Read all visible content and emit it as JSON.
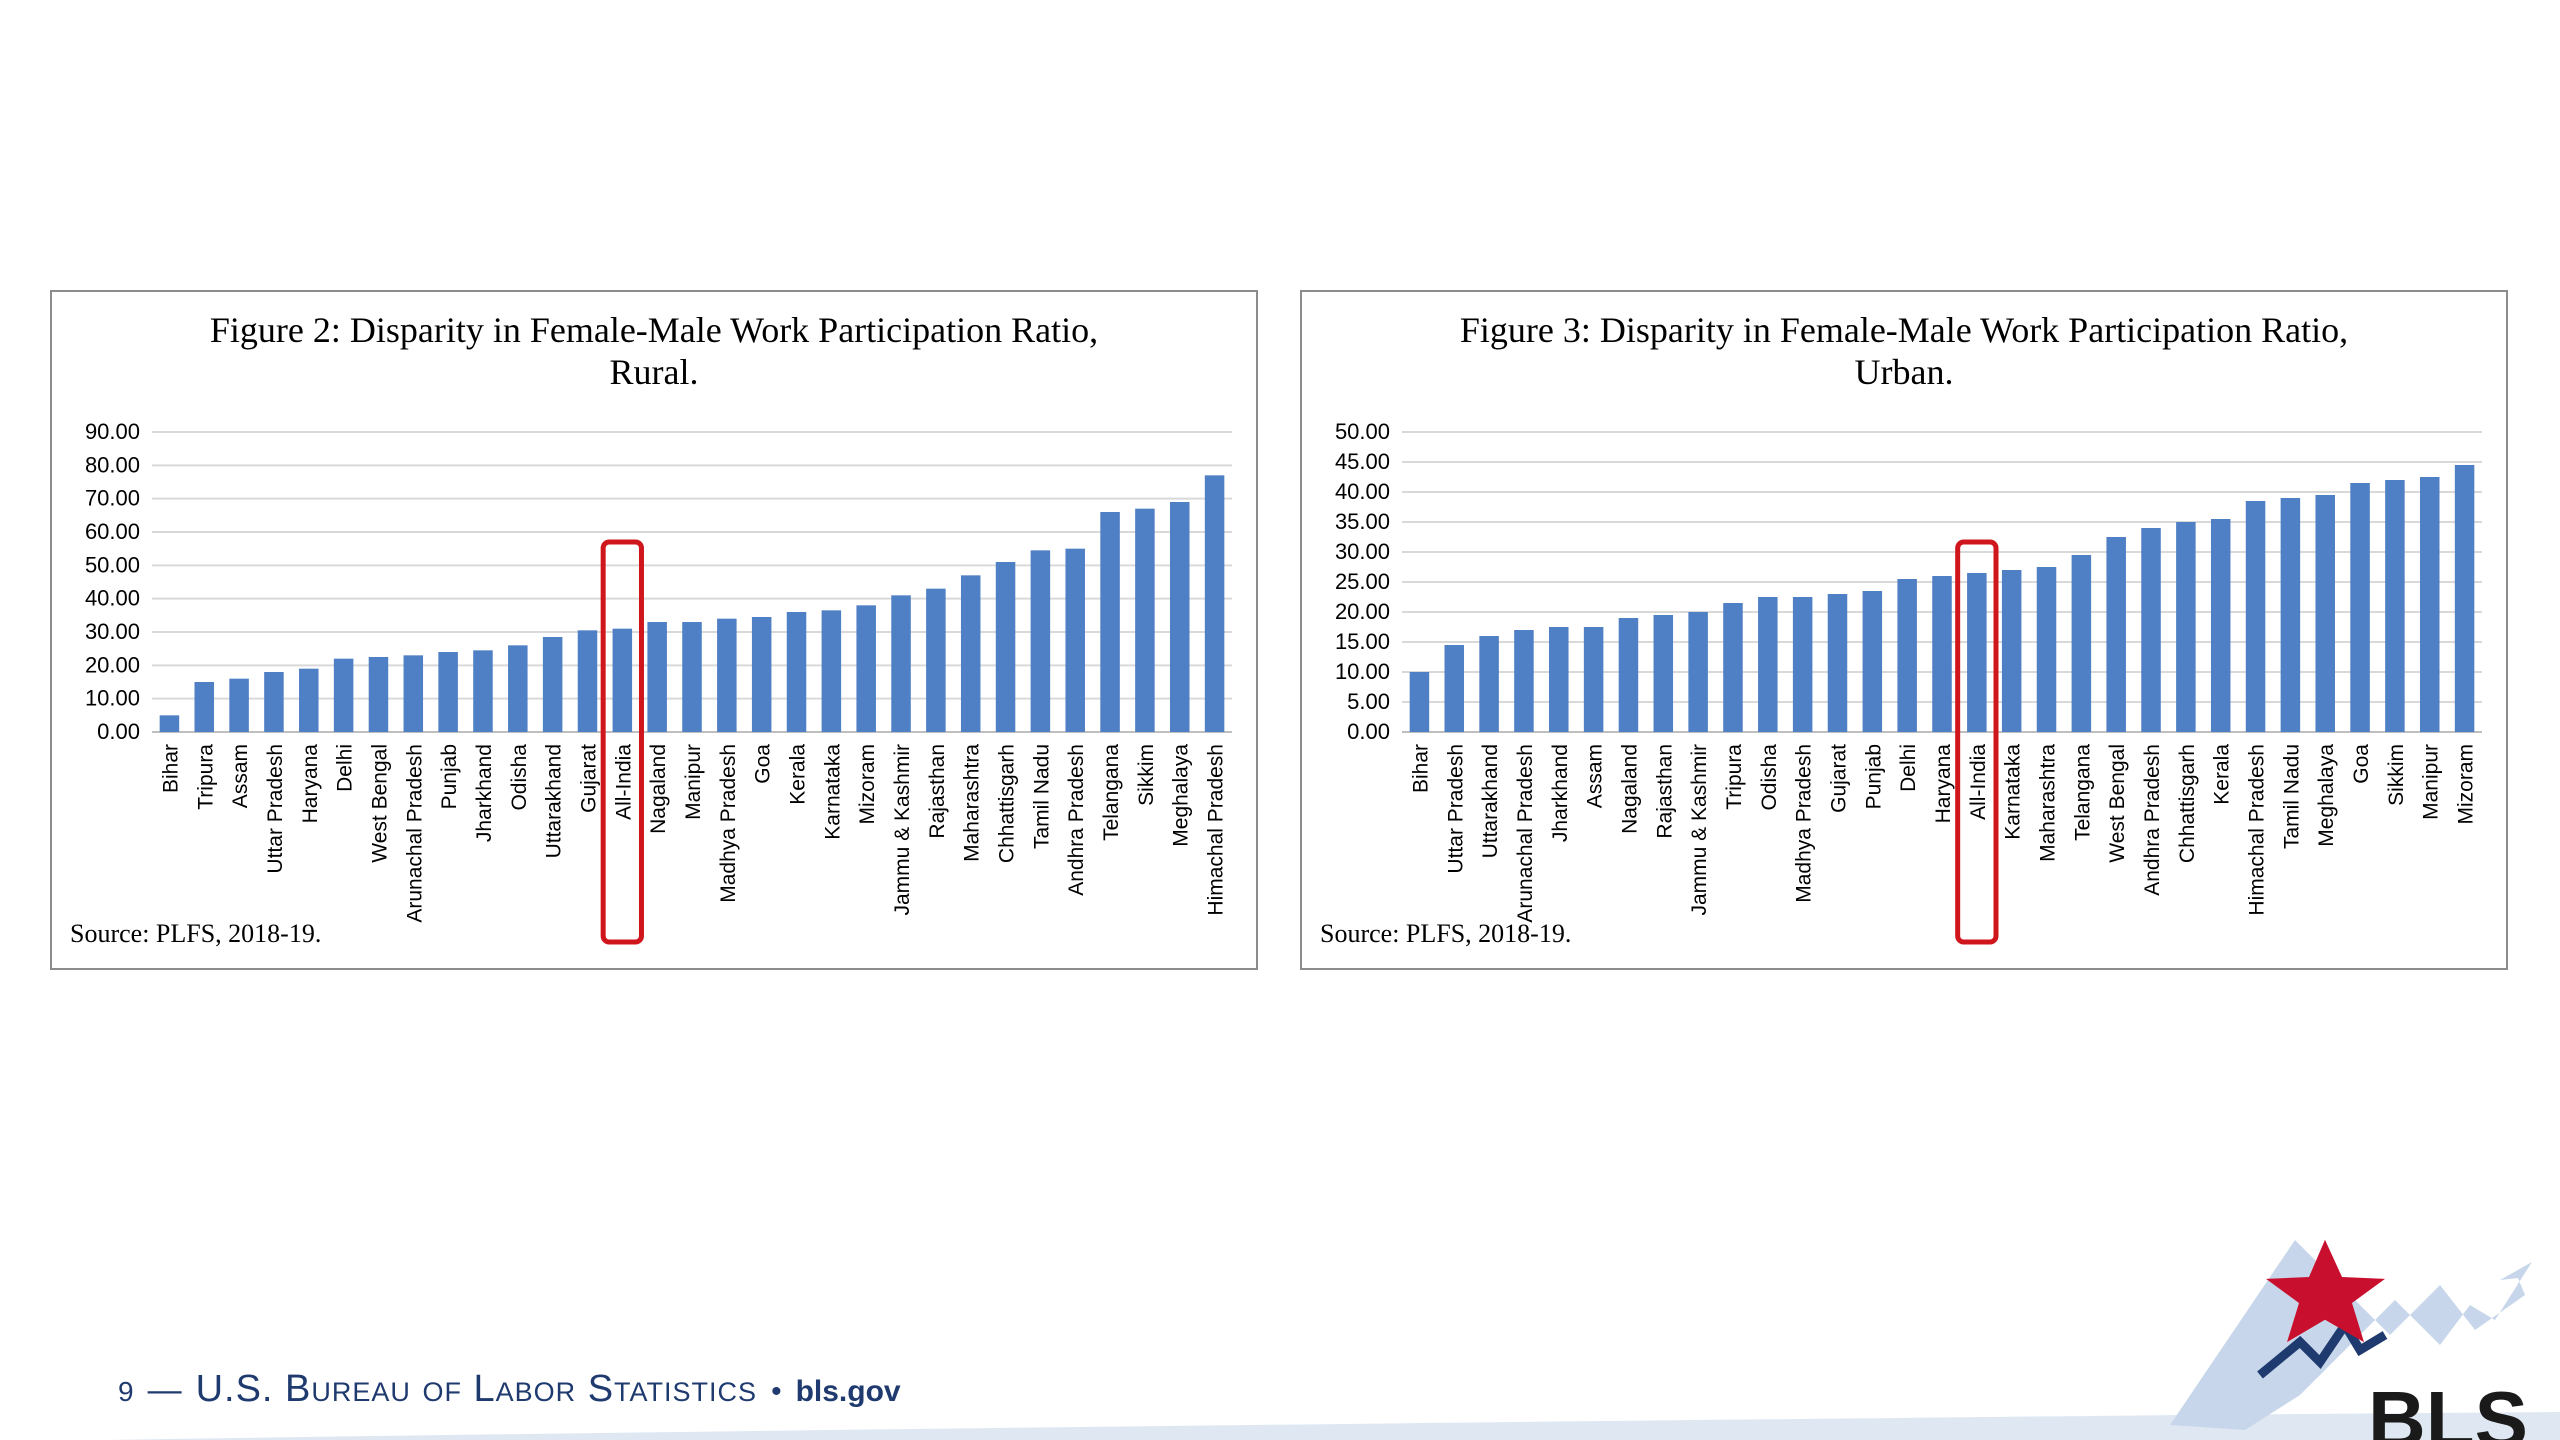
{
  "colors": {
    "bar": "#4f7fc4",
    "highlight": "#d0161d",
    "grid": "#d9d9d9",
    "brand": "#1f3a6e"
  },
  "footer": {
    "page_number": "9",
    "dash": "—",
    "agency": "U.S. Bureau of Labor Statistics",
    "bullet": "•",
    "site": "bls.gov"
  },
  "logo": {
    "text": "BLS"
  },
  "chart_data": [
    {
      "type": "bar",
      "title": "Figure 2: Disparity  in Female-Male Work Participation Ratio,",
      "subtitle": "Rural.",
      "source": "Source: PLFS, 2018-19.",
      "ylim": [
        0,
        90
      ],
      "y_ticks": [
        "0.00",
        "10.00",
        "20.00",
        "30.00",
        "40.00",
        "50.00",
        "60.00",
        "70.00",
        "80.00",
        "90.00"
      ],
      "grid": true,
      "highlight": "All-India",
      "categories": [
        "Bihar",
        "Tripura",
        "Assam",
        "Uttar Pradesh",
        "Haryana",
        "Delhi",
        "West Bengal",
        "Arunachal Pradesh",
        "Punjab",
        "Jharkhand",
        "Odisha",
        "Uttarakhand",
        "Gujarat",
        "All-India",
        "Nagaland",
        "Manipur",
        "Madhya Pradesh",
        "Goa",
        "Kerala",
        "Karnataka",
        "Mizoram",
        "Jammu & Kashmir",
        "Rajasthan",
        "Maharashtra",
        "Chhattisgarh",
        "Tamil Nadu",
        "Andhra Pradesh",
        "Telangana",
        "Sikkim",
        "Meghalaya",
        "Himachal Pradesh"
      ],
      "values": [
        5,
        15,
        16,
        18,
        19,
        22,
        22.5,
        23,
        24,
        24.5,
        26,
        28.5,
        30.5,
        31,
        33,
        33,
        34,
        34.5,
        36,
        36.5,
        38,
        41,
        43,
        47,
        51,
        54.5,
        55,
        66,
        67,
        69,
        77
      ]
    },
    {
      "type": "bar",
      "title": "Figure 3: Disparity  in Female-Male Work Participation Ratio,",
      "subtitle": "Urban.",
      "source": "Source: PLFS, 2018-19.",
      "ylim": [
        0,
        50
      ],
      "y_ticks": [
        "0.00",
        "5.00",
        "10.00",
        "15.00",
        "20.00",
        "25.00",
        "30.00",
        "35.00",
        "40.00",
        "45.00",
        "50.00"
      ],
      "grid": true,
      "highlight": "All-India",
      "categories": [
        "Bihar",
        "Uttar Pradesh",
        "Uttarakhand",
        "Arunachal Pradesh",
        "Jharkhand",
        "Assam",
        "Nagaland",
        "Rajasthan",
        "Jammu & Kashmir",
        "Tripura",
        "Odisha",
        "Madhya Pradesh",
        "Gujarat",
        "Punjab",
        "Delhi",
        "Haryana",
        "All-India",
        "Karnataka",
        "Maharashtra",
        "Telangana",
        "West Bengal",
        "Andhra Pradesh",
        "Chhattisgarh",
        "Kerala",
        "Himachal Pradesh",
        "Tamil Nadu",
        "Meghalaya",
        "Goa",
        "Sikkim",
        "Manipur",
        "Mizoram"
      ],
      "values": [
        10,
        14.5,
        16,
        17,
        17.5,
        17.5,
        19,
        19.5,
        20,
        21.5,
        22.5,
        22.5,
        23,
        23.5,
        25.5,
        26,
        26.5,
        27,
        27.5,
        29.5,
        32.5,
        34,
        35,
        35.5,
        38.5,
        39,
        39.5,
        41.5,
        42,
        42.5,
        44.5
      ]
    }
  ]
}
